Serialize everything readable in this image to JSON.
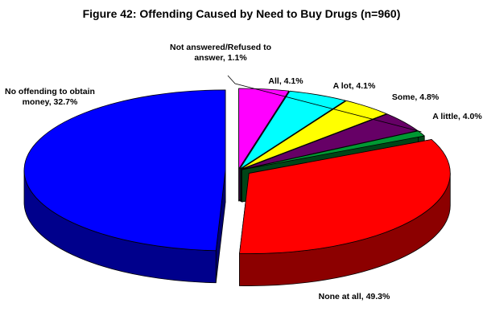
{
  "chart_data": {
    "type": "pie",
    "title": "Figure 42: Offending Caused by Need to Buy Drugs (n=960)",
    "three_d": true,
    "exploded": true,
    "legend": "none",
    "slices": [
      {
        "label": "None at all, 49.3%",
        "category": "None at all",
        "value": 49.3,
        "color": "#0000ff"
      },
      {
        "label": "No offending to obtain money, 32.7%",
        "category": "No offending to obtain money",
        "value": 32.7,
        "color": "#ff0000"
      },
      {
        "label": "Not answered/Refused to answer, 1.1%",
        "category": "Not answered/Refused to answer",
        "value": 1.1,
        "color": "#009933"
      },
      {
        "label": "All, 4.1%",
        "category": "All",
        "value": 4.1,
        "color": "#660066"
      },
      {
        "label": "A lot, 4.1%",
        "category": "A lot",
        "value": 4.1,
        "color": "#ffff00"
      },
      {
        "label": "Some, 4.8%",
        "category": "Some",
        "value": 4.8,
        "color": "#00ffff"
      },
      {
        "label": "A little, 4.0%",
        "category": "A little",
        "value": 4.0,
        "color": "#ff00ff"
      }
    ]
  }
}
